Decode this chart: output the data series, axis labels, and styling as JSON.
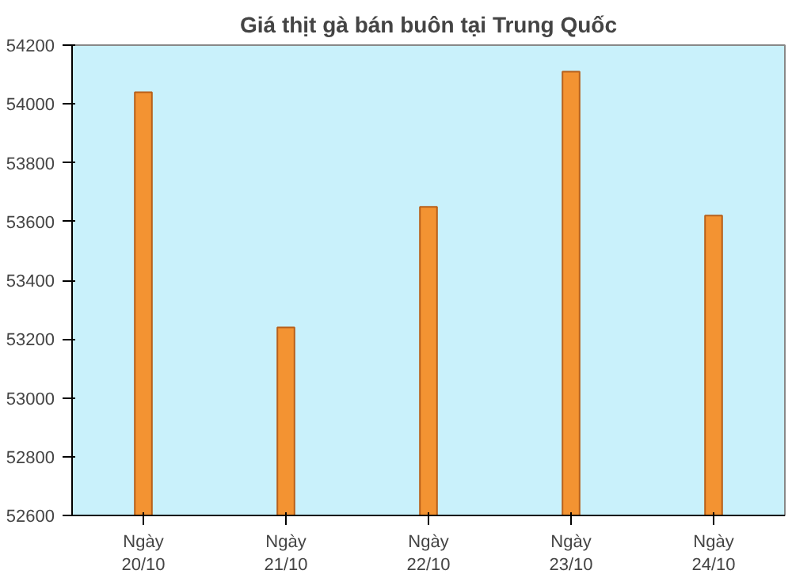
{
  "chart_data": {
    "type": "bar",
    "title": "Giá thịt gà bán buôn tại Trung Quốc",
    "categories": [
      "Ngày\n20/10",
      "Ngày\n21/10",
      "Ngày\n22/10",
      "Ngày\n23/10",
      "Ngày\n24/10"
    ],
    "values": [
      54040,
      53240,
      53650,
      54110,
      53620
    ],
    "color": "#f39332",
    "ylim": [
      52600,
      54200
    ],
    "yticks": [
      52600,
      52800,
      53000,
      53200,
      53400,
      53600,
      53800,
      54000,
      54200
    ],
    "grid": false
  }
}
